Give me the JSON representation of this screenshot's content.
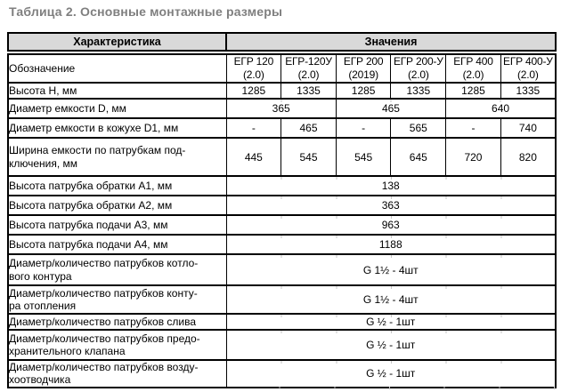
{
  "title": "Таблица 2. Основные монтажные размеры",
  "colors": {
    "title_text": "#7f7f7f",
    "header_bg": "#d9d9d9",
    "border": "#000000",
    "tick_marks": "#c6c6c6"
  },
  "table": {
    "header": {
      "characteristic": "Характеристика",
      "values": "Значения"
    },
    "rows": [
      {
        "label": "Обозначение",
        "models": [
          {
            "name": "ЕГР 120",
            "ver": "(2.0)"
          },
          {
            "name": "ЕГР-120У",
            "ver": "(2.0)"
          },
          {
            "name": "ЕГР 200",
            "ver": "(2019)"
          },
          {
            "name": "ЕГР 200-У",
            "ver": "(2.0)"
          },
          {
            "name": "ЕГР 400",
            "ver": "(2.0)"
          },
          {
            "name": "ЕГР 400-У",
            "ver": "(2.0)"
          }
        ]
      },
      {
        "label": "Высота Н, мм",
        "cells": [
          {
            "text": "1285"
          },
          {
            "text": "1335"
          },
          {
            "text": "1285"
          },
          {
            "text": "1335"
          },
          {
            "text": "1285"
          },
          {
            "text": "1335"
          }
        ]
      },
      {
        "label": "Диаметр емкости D, мм",
        "cells": [
          {
            "text": "365",
            "span": 2
          },
          {
            "text": "465",
            "span": 2
          },
          {
            "text": "640",
            "span": 2
          }
        ]
      },
      {
        "label": "Диаметр емкости в кожухе D1, мм",
        "cells": [
          {
            "text": "-"
          },
          {
            "text": "465"
          },
          {
            "text": "-"
          },
          {
            "text": "565"
          },
          {
            "text": "-"
          },
          {
            "text": "740"
          }
        ]
      },
      {
        "label": "Ширина емкости по патрубкам под-\nключения, мм",
        "cells": [
          {
            "text": "445"
          },
          {
            "text": "545"
          },
          {
            "text": "545"
          },
          {
            "text": "645"
          },
          {
            "text": "720"
          },
          {
            "text": "820"
          }
        ]
      },
      {
        "label": "Высота патрубка обратки А1, мм",
        "cells": [
          {
            "text": "138",
            "span": 6
          }
        ]
      },
      {
        "label": "Высота патрубка обратки А2, мм",
        "cells": [
          {
            "text": "363",
            "span": 6
          }
        ]
      },
      {
        "label": "Высота патрубка подачи А3, мм",
        "cells": [
          {
            "text": "963",
            "span": 6
          }
        ]
      },
      {
        "label": "Высота патрубка подачи А4, мм",
        "cells": [
          {
            "text": "1188",
            "span": 6
          }
        ]
      },
      {
        "label": "Диаметр/количество патрубков котло-\nвого контура",
        "cells": [
          {
            "text": "G 1½ - 4шт",
            "span": 6
          }
        ]
      },
      {
        "label": "Диаметр/количество патрубков конту-\nра отопления",
        "cells": [
          {
            "text": "G 1½ - 4шт",
            "span": 6
          }
        ]
      },
      {
        "label": "Диаметр/количество патрубков слива",
        "cells": [
          {
            "text": "G ½ - 1шт",
            "span": 6
          }
        ]
      },
      {
        "label": "Диаметр/количество патрубков предо-\nхранительного клапана",
        "cells": [
          {
            "text": "G ½ - 1шт",
            "span": 6
          }
        ]
      },
      {
        "label": "Диаметр/количество патрубков возду-\nхоотводчика",
        "cells": [
          {
            "text": "G ½ - 1шт",
            "span": 6
          }
        ]
      }
    ]
  }
}
